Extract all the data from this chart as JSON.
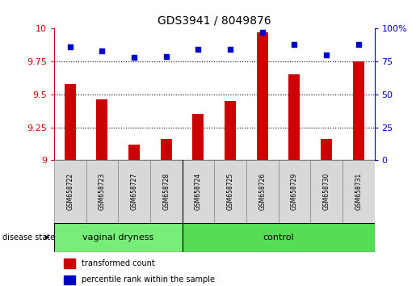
{
  "title": "GDS3941 / 8049876",
  "samples": [
    "GSM658722",
    "GSM658723",
    "GSM658727",
    "GSM658728",
    "GSM658724",
    "GSM658725",
    "GSM658726",
    "GSM658729",
    "GSM658730",
    "GSM658731"
  ],
  "bar_values": [
    9.58,
    9.46,
    9.12,
    9.16,
    9.35,
    9.45,
    9.97,
    9.65,
    9.16,
    9.75
  ],
  "scatter_values": [
    86,
    83,
    78,
    79,
    84,
    84,
    97,
    88,
    80,
    88
  ],
  "bar_color": "#cc0000",
  "scatter_color": "#0000cc",
  "ylim_left": [
    9.0,
    10.0
  ],
  "ylim_right": [
    0,
    100
  ],
  "yticks_left": [
    9.0,
    9.25,
    9.5,
    9.75,
    10.0
  ],
  "ytick_labels_left": [
    "9",
    "9.25",
    "9.5",
    "9.75",
    "10"
  ],
  "yticks_right": [
    0,
    25,
    50,
    75,
    100
  ],
  "ytick_labels_right": [
    "0",
    "25",
    "50",
    "75",
    "100%"
  ],
  "group_vaginal": {
    "label": "vaginal dryness",
    "start": 0,
    "end": 3,
    "color": "#77ee77"
  },
  "group_control": {
    "label": "control",
    "start": 4,
    "end": 9,
    "color": "#55dd55"
  },
  "disease_state_label": "disease state",
  "legend_bar_label": "transformed count",
  "legend_scatter_label": "percentile rank within the sample",
  "background_color": "#ffffff",
  "tick_label_color_left": "#cc0000",
  "tick_label_color_right": "#0000cc",
  "gridline_ticks": [
    9.25,
    9.5,
    9.75
  ],
  "bar_width": 0.35,
  "scatter_marker_size": 25
}
